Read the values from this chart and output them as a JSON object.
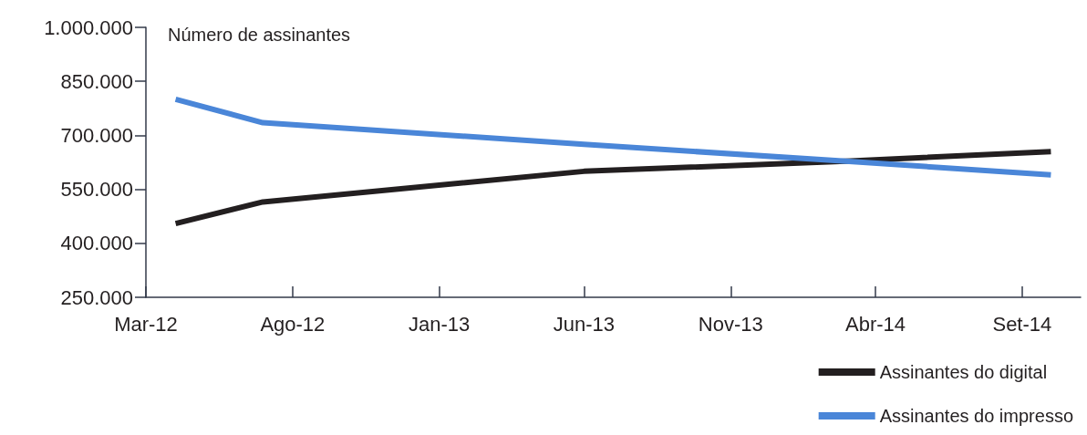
{
  "chart_data": {
    "type": "line",
    "ylabel": "Número de assinantes",
    "x": [
      "2012-04",
      "2012-07",
      "2013-06",
      "2014-03",
      "2014-10"
    ],
    "series": [
      {
        "name": "Assinantes do digital",
        "color": "#231f20",
        "values": [
          455000,
          515000,
          600000,
          628000,
          655000
        ]
      },
      {
        "name": "Assinantes do impresso",
        "color": "#4a86d8",
        "values": [
          800000,
          735000,
          675000,
          628000,
          590000
        ]
      }
    ],
    "xlim": [
      "2012-03",
      "2014-11"
    ],
    "xticks": [
      {
        "value": "2012-03",
        "label": "Mar-12"
      },
      {
        "value": "2012-08",
        "label": "Ago-12"
      },
      {
        "value": "2013-01",
        "label": "Jan-13"
      },
      {
        "value": "2013-06",
        "label": "Jun-13"
      },
      {
        "value": "2013-11",
        "label": "Nov-13"
      },
      {
        "value": "2014-04",
        "label": "Abr-14"
      },
      {
        "value": "2014-09",
        "label": "Set-14"
      }
    ],
    "ylim": [
      250000,
      1000000
    ],
    "yticks": [
      {
        "value": 250000,
        "label": "250.000"
      },
      {
        "value": 400000,
        "label": "400.000"
      },
      {
        "value": 550000,
        "label": "550.000"
      },
      {
        "value": 700000,
        "label": "700.000"
      },
      {
        "value": 850000,
        "label": "850.000"
      },
      {
        "value": 1000000,
        "label": "1.000.000"
      }
    ],
    "grid": false,
    "legend": "bottom right",
    "marker": "none",
    "line_style": "solid"
  }
}
